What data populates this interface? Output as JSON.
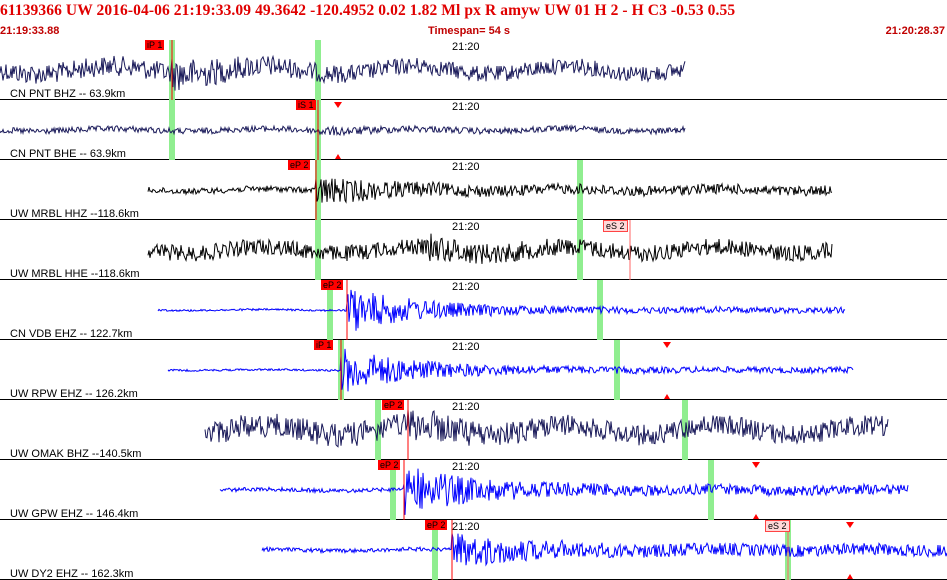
{
  "header": {
    "title": "61139366 UW 2016-04-06 21:19:33.09    49.3642 -120.4952    0.02  1.82 Ml  px  R amyw      UW 01  H   2  -  H C3    -0.53  0.55",
    "start_time": "21:19:33.88",
    "timespan": "Timespan=  54 s",
    "end_time": "21:20:28.37"
  },
  "colors": {
    "accent_red": "#e00000",
    "dark_trace": "#1a1a5a",
    "black_trace": "#000000",
    "blue_trace": "#0000ff",
    "pick_bar": "#90ee90",
    "pick_label": "#ff0000"
  },
  "panels": [
    {
      "station": "CN PNT BHZ -- 63.9km",
      "time_label": "21:20",
      "pick": "iP 1",
      "pick_style": "solid"
    },
    {
      "station": "CN PNT BHE -- 63.9km",
      "time_label": "21:20",
      "pick": "iS 1",
      "pick_style": "solid"
    },
    {
      "station": "UW MRBL HHZ --118.6km",
      "time_label": "21:20",
      "pick": "eP 2",
      "pick_style": "solid"
    },
    {
      "station": "UW MRBL HHE --118.6km",
      "time_label": "21:20",
      "pick": "eS 2",
      "pick_style": "open"
    },
    {
      "station": "CN VDB EHZ -- 122.7km",
      "time_label": "21:20",
      "pick": "eP 2",
      "pick_style": "solid"
    },
    {
      "station": "UW RPW EHZ -- 126.2km",
      "time_label": "21:20",
      "pick": "iP 1",
      "pick_style": "solid"
    },
    {
      "station": "UW OMAK BHZ --140.5km",
      "time_label": "21:20",
      "pick": "eP 2",
      "pick_style": "solid"
    },
    {
      "station": "UW GPW EHZ -- 146.4km",
      "time_label": "21:20",
      "pick": "eP 2",
      "pick_style": "solid"
    },
    {
      "station": "UW DY2 EHZ -- 162.3km",
      "time_label": "21:20",
      "pick": "eP 2",
      "pick_style": "solid",
      "pick2": "eS 2"
    }
  ]
}
